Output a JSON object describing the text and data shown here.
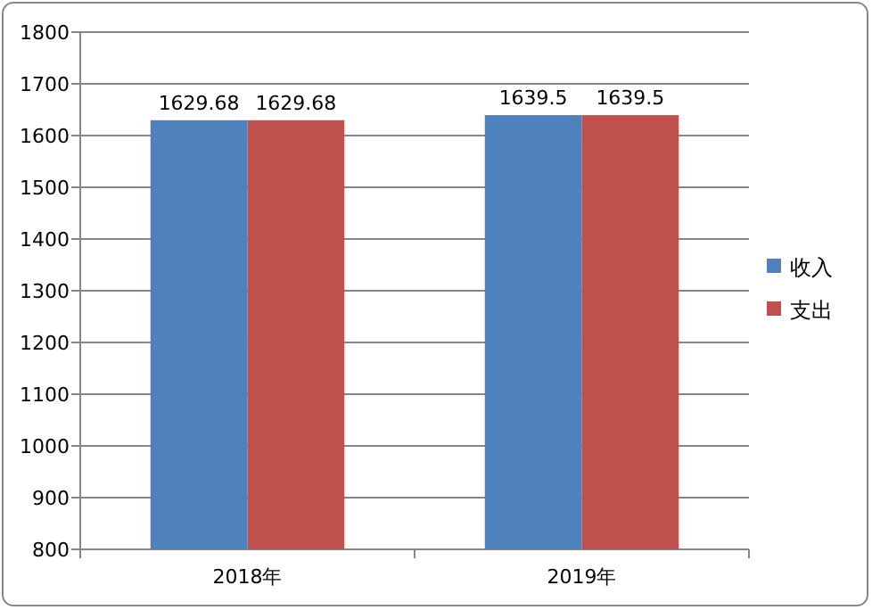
{
  "chart_data": {
    "type": "bar",
    "categories": [
      "2018年",
      "2019年"
    ],
    "series": [
      {
        "name": "收入",
        "color": "#4f81bd",
        "values": [
          1629.68,
          1639.5
        ]
      },
      {
        "name": "支出",
        "color": "#c0504d",
        "values": [
          1629.68,
          1639.5
        ]
      }
    ],
    "ylim": [
      800,
      1800
    ],
    "yticks": [
      800,
      900,
      1000,
      1100,
      1200,
      1300,
      1400,
      1500,
      1600,
      1700,
      1800
    ],
    "grid": "y",
    "legend": "right",
    "data_labels": true
  }
}
